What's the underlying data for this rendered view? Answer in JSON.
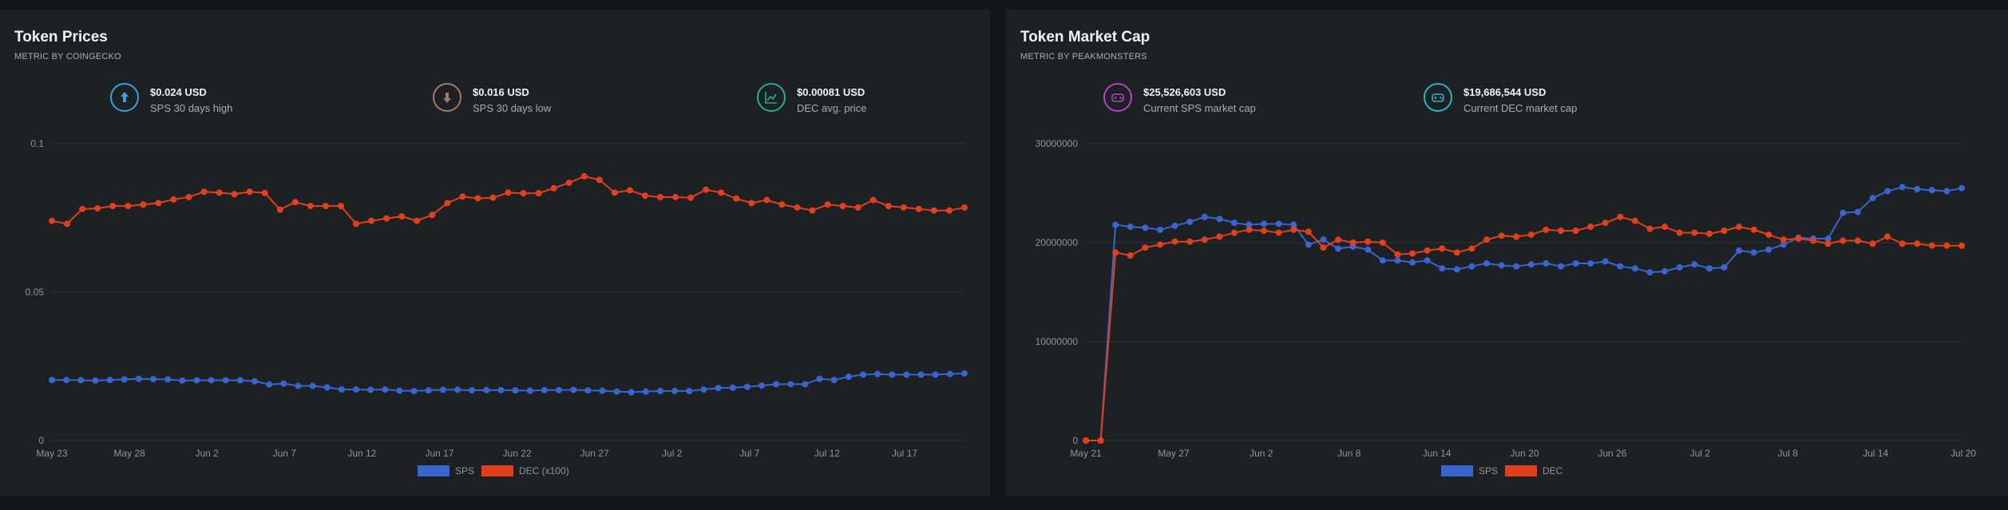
{
  "colors": {
    "sps": "#3a64d0",
    "dec": "#e2401c",
    "panel_bg": "#1e2124",
    "page_bg": "#141617",
    "grid": "#2c3034"
  },
  "left_panel": {
    "title": "Token Prices",
    "subtitle": "METRIC BY COINGECKO",
    "stats": [
      {
        "value": "$0.024 USD",
        "label": "SPS 30 days high",
        "icon": "arrow-up-icon",
        "color": "#3aa0e0"
      },
      {
        "value": "$0.016 USD",
        "label": "SPS 30 days low",
        "icon": "arrow-down-icon",
        "color": "#a27b66"
      },
      {
        "value": "$0.00081 USD",
        "label": "DEC avg. price",
        "icon": "chart-line-icon",
        "color": "#1fae9a"
      }
    ],
    "legend": [
      "SPS",
      "DEC (x100)"
    ]
  },
  "right_panel": {
    "title": "Token Market Cap",
    "subtitle": "METRIC BY PEAKMONSTERS",
    "stats": [
      {
        "value": "$25,526,603 USD",
        "label": "Current SPS market cap",
        "icon": "gamepad-icon",
        "color": "#b640c8"
      },
      {
        "value": "$19,686,544 USD",
        "label": "Current DEC market cap",
        "icon": "gamepad-icon",
        "color": "#27b6c9"
      }
    ],
    "legend": [
      "SPS",
      "DEC"
    ]
  },
  "chart_data": [
    {
      "type": "line",
      "title": "Token Prices",
      "x_ticks": [
        "May 23",
        "May 28",
        "Jun 2",
        "Jun 7",
        "Jun 12",
        "Jun 17",
        "Jun 22",
        "Jun 27",
        "Jul 2",
        "Jul 7",
        "Jul 12",
        "Jul 17"
      ],
      "y_ticks": [
        "0.1",
        "0.05",
        "0"
      ],
      "ylim": [
        0,
        0.1
      ],
      "grid": true,
      "legend_position": "bottom",
      "series": [
        {
          "name": "SPS",
          "values": [
            0.0204,
            0.0204,
            0.0203,
            0.0202,
            0.0204,
            0.0206,
            0.0208,
            0.0207,
            0.0206,
            0.0202,
            0.0203,
            0.0203,
            0.0203,
            0.0203,
            0.02,
            0.0189,
            0.0192,
            0.0184,
            0.0184,
            0.0179,
            0.0172,
            0.0172,
            0.0171,
            0.0172,
            0.0168,
            0.0167,
            0.0169,
            0.0171,
            0.0171,
            0.0169,
            0.017,
            0.017,
            0.0169,
            0.0168,
            0.017,
            0.017,
            0.0171,
            0.0169,
            0.0168,
            0.0165,
            0.0163,
            0.0165,
            0.0167,
            0.0167,
            0.0167,
            0.0172,
            0.0177,
            0.0178,
            0.0181,
            0.0185,
            0.019,
            0.019,
            0.019,
            0.0208,
            0.0204,
            0.0215,
            0.0222,
            0.0224,
            0.0222,
            0.0222,
            0.0222,
            0.0222,
            0.0224,
            0.0226
          ]
        },
        {
          "name": "DEC (x100)",
          "values": [
            0.074,
            0.073,
            0.078,
            0.0782,
            0.079,
            0.079,
            0.0795,
            0.08,
            0.0812,
            0.082,
            0.0838,
            0.0835,
            0.083,
            0.0838,
            0.0834,
            0.0778,
            0.0803,
            0.079,
            0.079,
            0.079,
            0.073,
            0.074,
            0.0748,
            0.0755,
            0.074,
            0.076,
            0.08,
            0.0822,
            0.0816,
            0.0818,
            0.0835,
            0.0833,
            0.0833,
            0.085,
            0.0868,
            0.089,
            0.0878,
            0.0835,
            0.0843,
            0.0825,
            0.082,
            0.082,
            0.0818,
            0.0845,
            0.0835,
            0.0815,
            0.08,
            0.081,
            0.0795,
            0.0785,
            0.0775,
            0.0795,
            0.079,
            0.0785,
            0.081,
            0.079,
            0.0785,
            0.078,
            0.0775,
            0.0775,
            0.0785
          ]
        }
      ]
    },
    {
      "type": "line",
      "title": "Token Market Cap",
      "x_ticks": [
        "May 21",
        "May 27",
        "Jun 2",
        "Jun 8",
        "Jun 14",
        "Jun 20",
        "Jun 26",
        "Jul 2",
        "Jul 8",
        "Jul 14",
        "Jul 20"
      ],
      "y_ticks": [
        "30000000",
        "20000000",
        "10000000",
        "0"
      ],
      "ylim": [
        0,
        30000000
      ],
      "grid": true,
      "legend_position": "bottom",
      "series": [
        {
          "name": "SPS",
          "values": [
            0,
            0,
            21800000,
            21600000,
            21500000,
            21300000,
            21700000,
            22100000,
            22600000,
            22400000,
            22000000,
            21800000,
            21900000,
            21900000,
            21800000,
            19800000,
            20300000,
            19400000,
            19600000,
            19300000,
            18200000,
            18200000,
            18000000,
            18200000,
            17400000,
            17300000,
            17600000,
            17900000,
            17700000,
            17600000,
            17800000,
            17900000,
            17600000,
            17900000,
            17900000,
            18100000,
            17600000,
            17400000,
            17000000,
            17100000,
            17500000,
            17800000,
            17400000,
            17500000,
            19200000,
            19000000,
            19300000,
            19800000,
            20500000,
            20400000,
            20400000,
            23000000,
            23100000,
            24500000,
            25200000,
            25600000,
            25400000,
            25300000,
            25200000,
            25500000
          ]
        },
        {
          "name": "DEC",
          "values": [
            0,
            0,
            19000000,
            18700000,
            19500000,
            19800000,
            20100000,
            20100000,
            20300000,
            20600000,
            21000000,
            21300000,
            21200000,
            21000000,
            21300000,
            21100000,
            19500000,
            20300000,
            20000000,
            20100000,
            20000000,
            18800000,
            18900000,
            19200000,
            19400000,
            19000000,
            19400000,
            20300000,
            20700000,
            20600000,
            20800000,
            21300000,
            21200000,
            21200000,
            21600000,
            22000000,
            22600000,
            22200000,
            21400000,
            21600000,
            21000000,
            21000000,
            20900000,
            21200000,
            21600000,
            21300000,
            20800000,
            20300000,
            20400000,
            20200000,
            19900000,
            20200000,
            20200000,
            19900000,
            20600000,
            19900000,
            19900000,
            19700000,
            19700000,
            19686544
          ]
        }
      ]
    }
  ]
}
